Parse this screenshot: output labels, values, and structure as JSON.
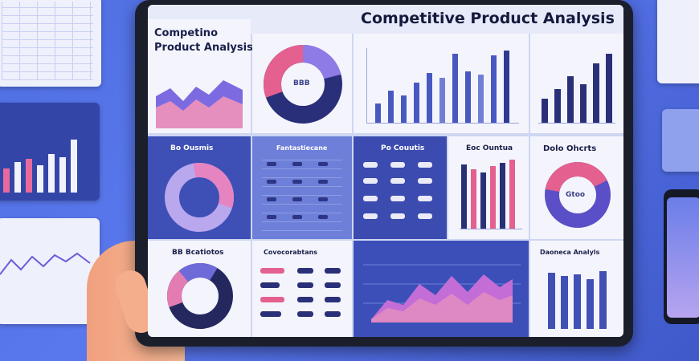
{
  "main_title": "Competitive Product Analysis",
  "corner_title_line1": "Competino",
  "corner_title_line2": "Product Analysis",
  "donut_center_label": "BBB",
  "panels": {
    "r2c1_title": "Bo Ousmis",
    "r2c2_title": "Fantastiecane",
    "r2c3_title": "Po Couutis",
    "r2c4_title": "Eoc Ountua",
    "r2c5_title": "Dolo Ohcrts",
    "r2c5_center": "Gtoo",
    "r3c1_title": "BB Bcatiotos",
    "r3c2_title": "Covocorabtans",
    "r3c5_title": "Daoneca Analyls"
  },
  "colors": {
    "navy": "#2a3a8f",
    "pink": "#e4608f",
    "violet": "#8f78e6",
    "light_panel": "#f4f5fc"
  },
  "icons": [
    "donut-chart-icon",
    "bar-chart-icon",
    "area-chart-icon",
    "line-chart-icon",
    "table-icon"
  ]
}
